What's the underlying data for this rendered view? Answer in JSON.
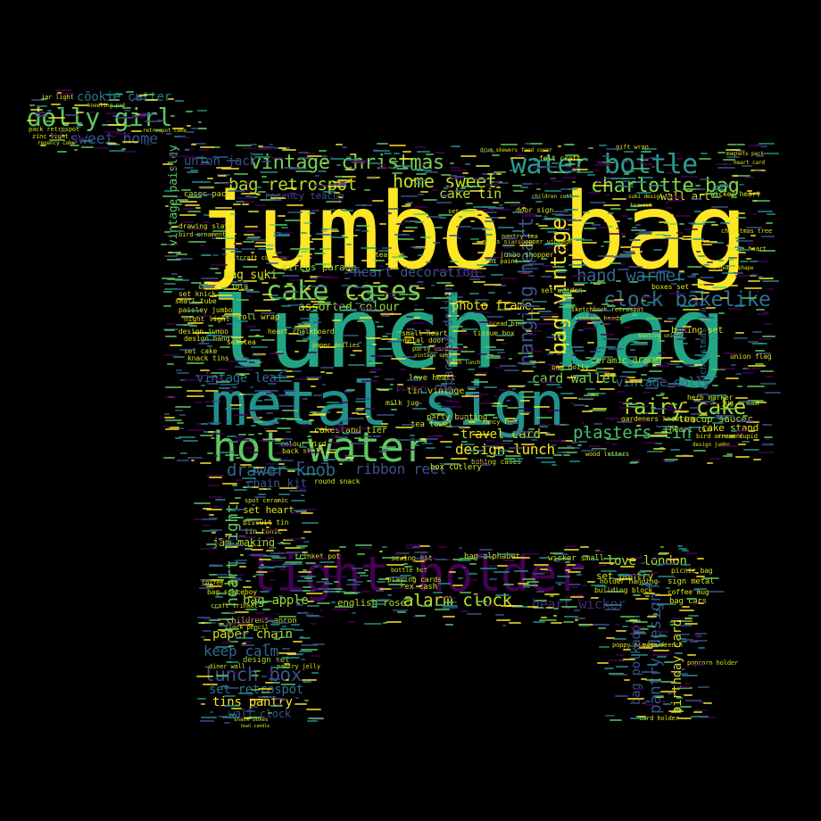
{
  "palette": {
    "background": "#000000",
    "yellow": "#fde725",
    "green": "#5ec962",
    "teal": "#21918c",
    "blue": "#3b528b",
    "purple": "#440154"
  },
  "words": [
    {
      "text": "jumbo bag",
      "color": "#fde725"
    },
    {
      "text": "lunch bag",
      "color": "#21a585"
    },
    {
      "text": "metal sign",
      "color": "#21918c"
    },
    {
      "text": "hot water",
      "color": "#5ec962"
    },
    {
      "text": "light holder",
      "color": "#440154"
    },
    {
      "text": "cake cases",
      "color": "#7ad151"
    },
    {
      "text": "water bottle",
      "color": "#2a9d8f"
    },
    {
      "text": "vintage christmas",
      "color": "#7ad151"
    },
    {
      "text": "charlotte bag",
      "color": "#86d549"
    },
    {
      "text": "home sweet",
      "color": "#c2df23"
    },
    {
      "text": "clock bakelike",
      "color": "#2c728e"
    },
    {
      "text": "fairy cake",
      "color": "#addc30"
    },
    {
      "text": "dolly girl",
      "color": "#5ec962"
    },
    {
      "text": "sweet home",
      "color": "#3b528b"
    },
    {
      "text": "cookie cutter",
      "color": "#2c728e"
    },
    {
      "text": "bag retrospot",
      "color": "#b5de2b"
    },
    {
      "text": "union jack",
      "color": "#3b528b"
    },
    {
      "text": "cake tin",
      "color": "#c2df23"
    },
    {
      "text": "wall art",
      "color": "#d8e219"
    },
    {
      "text": "hand warmer",
      "color": "#31688e"
    },
    {
      "text": "heart decoration",
      "color": "#3b528b"
    },
    {
      "text": "photo frame",
      "color": "#d8e219"
    },
    {
      "text": "circus parade",
      "color": "#9fda3a"
    },
    {
      "text": "assorted colour",
      "color": "#9fda3a"
    },
    {
      "text": "plasters tin",
      "color": "#4ac16d"
    },
    {
      "text": "vintage dolly",
      "color": "#31688e"
    },
    {
      "text": "card wallet",
      "color": "#7ad151"
    },
    {
      "text": "vintage leaf",
      "color": "#2c728e"
    },
    {
      "text": "drawer knob",
      "color": "#31688e"
    },
    {
      "text": "ribbon reel",
      "color": "#3b528b"
    },
    {
      "text": "travel card",
      "color": "#d8e219"
    },
    {
      "text": "design lunch",
      "color": "#fde725"
    },
    {
      "text": "chain kit",
      "color": "#3b528b"
    },
    {
      "text": "love london",
      "color": "#b5de2b"
    },
    {
      "text": "alarm clock",
      "color": "#c2df23"
    },
    {
      "text": "heart wicker",
      "color": "#472c7a"
    },
    {
      "text": "bag apple",
      "color": "#9fda3a"
    },
    {
      "text": "english rose",
      "color": "#addc30"
    },
    {
      "text": "set pantry",
      "color": "#d8e219"
    },
    {
      "text": "paper chain",
      "color": "#c2df23"
    },
    {
      "text": "keep calm",
      "color": "#31688e"
    },
    {
      "text": "lunch box",
      "color": "#3b528b"
    },
    {
      "text": "set retrospot",
      "color": "#2c728e"
    },
    {
      "text": "tins pantry",
      "color": "#fde725"
    },
    {
      "text": "wall clock",
      "color": "#3b528b"
    },
    {
      "text": "jam making",
      "color": "#addc30"
    },
    {
      "text": "set heart",
      "color": "#d8e219"
    },
    {
      "text": "childrens apron",
      "color": "#c2df23"
    },
    {
      "text": "cake stand",
      "color": "#d8e219"
    },
    {
      "text": "ceramic drawer",
      "color": "#b5de2b"
    },
    {
      "text": "baking set",
      "color": "#d8e219"
    },
    {
      "text": "love heart",
      "color": "#d8e219"
    },
    {
      "text": "tin vintage",
      "color": "#d8e219"
    },
    {
      "text": "box cutlery",
      "color": "#d8e219"
    },
    {
      "text": "baking cases",
      "color": "#c2df23"
    },
    {
      "text": "party bunting",
      "color": "#d8e219"
    },
    {
      "text": "teacup saucer",
      "color": "#b5de2b"
    },
    {
      "text": "heart tin",
      "color": "#b5de2b"
    },
    {
      "text": "design set",
      "color": "#9fda3a"
    },
    {
      "text": "night light",
      "color": "#d8e219"
    },
    {
      "text": "sign metal",
      "color": "#d8e219"
    },
    {
      "text": "bag cars",
      "color": "#d8e219"
    },
    {
      "text": "coffee mug",
      "color": "#d8e219"
    },
    {
      "text": "picnic bag",
      "color": "#d8e219"
    },
    {
      "text": "cakestand tier",
      "color": "#d8e219"
    },
    {
      "text": "colour bird",
      "color": "#d8e219"
    },
    {
      "text": "back skull",
      "color": "#d8e219"
    },
    {
      "text": "bag spaceboy",
      "color": "#d8e219"
    },
    {
      "text": "rex cash",
      "color": "#d8e219"
    },
    {
      "text": "playing cards",
      "color": "#d8e219"
    },
    {
      "text": "bag alphabet",
      "color": "#d8e219"
    },
    {
      "text": "holder hanging",
      "color": "#d8e219"
    },
    {
      "text": "building block",
      "color": "#d8e219"
    },
    {
      "text": "sewing kit",
      "color": "#d8e219"
    },
    {
      "text": "wicker small",
      "color": "#d8e219"
    },
    {
      "text": "trinket pot",
      "color": "#d8e219"
    },
    {
      "text": "bottle hot",
      "color": "#d8e219"
    },
    {
      "text": "heart light",
      "color": "#5ec962"
    },
    {
      "text": "vintage paisley",
      "color": "#5ec962"
    },
    {
      "text": "hanging heart",
      "color": "#3b528b"
    },
    {
      "text": "bag vintage",
      "color": "#fde725"
    },
    {
      "text": "spaceboy design",
      "color": "#3b528b"
    },
    {
      "text": "pantry design",
      "color": "#3b528b"
    },
    {
      "text": "bag polkadot",
      "color": "#3b528b"
    },
    {
      "text": "birthday card",
      "color": "#d8e219"
    },
    {
      "text": "christmas craft",
      "color": "#31688e"
    },
    {
      "text": "regency teacup",
      "color": "#3b528b"
    },
    {
      "text": "gardeners kneeling",
      "color": "#d8e219"
    },
    {
      "text": "herb marker",
      "color": "#d8e219"
    },
    {
      "text": "bag doily",
      "color": "#d8e219"
    },
    {
      "text": "picture frame",
      "color": "#472c7a"
    },
    {
      "text": "door sign",
      "color": "#d8e219"
    },
    {
      "text": "jug cream",
      "color": "#d8e219"
    },
    {
      "text": "cases pack",
      "color": "#d8e219"
    },
    {
      "text": "tissue box",
      "color": "#d8e219"
    },
    {
      "text": "small heart",
      "color": "#d8e219"
    },
    {
      "text": "teatime",
      "color": "#d8e219"
    },
    {
      "text": "biscuit tin",
      "color": "#d8e219"
    },
    {
      "text": "tea towel",
      "color": "#d8e219"
    },
    {
      "text": "round snack",
      "color": "#d8e219"
    },
    {
      "text": "set wooden",
      "color": "#d8e219"
    },
    {
      "text": "design hand",
      "color": "#d8e219"
    },
    {
      "text": "set cake",
      "color": "#d8e219"
    },
    {
      "text": "knack tins",
      "color": "#d8e219"
    },
    {
      "text": "paisley jumbo",
      "color": "#d8e219"
    },
    {
      "text": "design jumbo",
      "color": "#d8e219"
    },
    {
      "text": "set knick",
      "color": "#d8e219"
    },
    {
      "text": "small tube",
      "color": "#d8e219"
    },
    {
      "text": "roll wrap",
      "color": "#d8e219"
    },
    {
      "text": "set tea",
      "color": "#d8e219"
    },
    {
      "text": "felt craft",
      "color": "#d8e219"
    },
    {
      "text": "boxes set",
      "color": "#d8e219"
    },
    {
      "text": "jar light",
      "color": "#d8e219"
    },
    {
      "text": "pack retrospot",
      "color": "#d8e219"
    },
    {
      "text": "zinc light",
      "color": "#d8e219"
    },
    {
      "text": "regency cake",
      "color": "#d8e219"
    },
    {
      "text": "kneeling pad",
      "color": "#d8e219"
    },
    {
      "text": "retrospot cake",
      "color": "#d8e219"
    },
    {
      "text": "union flag",
      "color": "#d8e219"
    },
    {
      "text": "charlie lola",
      "color": "#d8e219"
    },
    {
      "text": "bag suki",
      "color": "#d8e219"
    },
    {
      "text": "heart chalkboard",
      "color": "#d8e219"
    },
    {
      "text": "mini paint",
      "color": "#d8e219"
    },
    {
      "text": "sketchbook retrospot",
      "color": "#d8e219"
    },
    {
      "text": "vintage heads",
      "color": "#d8e219"
    },
    {
      "text": "jumbo shopper",
      "color": "#d8e219"
    },
    {
      "text": "shopper vintage",
      "color": "#d8e219"
    },
    {
      "text": "feltcraft cushion",
      "color": "#d8e219"
    },
    {
      "text": "gift wrap",
      "color": "#d8e219"
    },
    {
      "text": "pantry tea",
      "color": "#d8e219"
    },
    {
      "text": "glass star",
      "color": "#d8e219"
    },
    {
      "text": "fancy font",
      "color": "#d8e219"
    },
    {
      "text": "milk jug",
      "color": "#d8e219"
    },
    {
      "text": "bread bin",
      "color": "#d8e219"
    },
    {
      "text": "wood letters",
      "color": "#d8e219"
    },
    {
      "text": "cream cupid",
      "color": "#d8e219"
    },
    {
      "text": "design jumbo",
      "color": "#d8e219"
    },
    {
      "text": "poppy playhouse",
      "color": "#d8e219"
    },
    {
      "text": "popcorn holder",
      "color": "#d8e219"
    },
    {
      "text": "card holder",
      "color": "#d8e219"
    },
    {
      "text": "sign french",
      "color": "#d8e219"
    },
    {
      "text": "diner wall",
      "color": "#d8e219"
    },
    {
      "text": "pantry jelly",
      "color": "#d8e219"
    },
    {
      "text": "snack boxes",
      "color": "#d8e219"
    },
    {
      "text": "bowl candle",
      "color": "#d8e219"
    },
    {
      "text": "clock pencil",
      "color": "#d8e219"
    },
    {
      "text": "coffee mug",
      "color": "#d8e219"
    },
    {
      "text": "spot ceramic",
      "color": "#d8e219"
    },
    {
      "text": "craft trinket",
      "color": "#d8e219"
    },
    {
      "text": "tin tonic",
      "color": "#d8e219"
    },
    {
      "text": "drawing slate",
      "color": "#d8e219"
    },
    {
      "text": "bird ornament",
      "color": "#d8e219"
    },
    {
      "text": "bird ornament",
      "color": "#d8e219"
    },
    {
      "text": "paper doilies",
      "color": "#d8e219"
    },
    {
      "text": "metal door",
      "color": "#d8e219"
    },
    {
      "text": "party candles",
      "color": "#d8e219"
    },
    {
      "text": "vintage spot",
      "color": "#d8e219"
    },
    {
      "text": "lunch lunch",
      "color": "#d8e219"
    },
    {
      "text": "bunting union",
      "color": "#d8e219"
    },
    {
      "text": "set paper",
      "color": "#d8e219"
    },
    {
      "text": "christmas tree",
      "color": "#d8e219"
    },
    {
      "text": "large heart",
      "color": "#d8e219"
    },
    {
      "text": "heart shape",
      "color": "#d8e219"
    },
    {
      "text": "suki design",
      "color": "#d8e219"
    },
    {
      "text": "wicker heart",
      "color": "#d8e219"
    },
    {
      "text": "heart card",
      "color": "#d8e219"
    },
    {
      "text": "tea set",
      "color": "#d8e219"
    },
    {
      "text": "children cutlery",
      "color": "#d8e219"
    },
    {
      "text": "magnets pack",
      "color": "#d8e219"
    },
    {
      "text": "food cover",
      "color": "#d8e219"
    },
    {
      "text": "drum skewers",
      "color": "#d8e219"
    }
  ]
}
